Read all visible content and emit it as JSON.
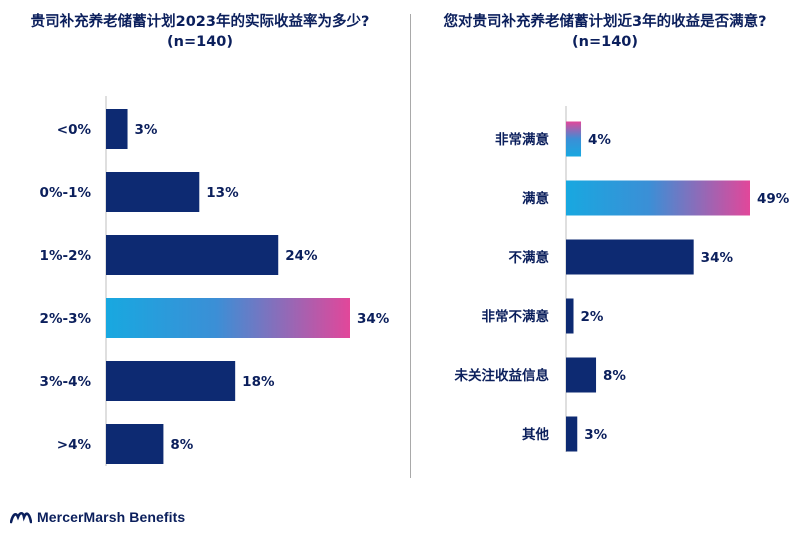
{
  "left_title_line1": "贵司补充养老储蓄计划2023年的实际收益率为多少?",
  "left_title_line2": "(n=140)",
  "right_title_line1": "您对贵司补充养老储蓄计划近3年的收益是否满意?",
  "right_title_line2": "(n=140)",
  "brand": "MercerMarsh Benefits",
  "colors": {
    "navy": "#0d2a72",
    "gradient_cyan": "#18a8e0",
    "gradient_pink": "#e2479a",
    "text": "#0b1f5c"
  },
  "chart_data": [
    {
      "type": "bar",
      "orientation": "horizontal",
      "title": "贵司补充养老储蓄计划2023年的实际收益率为多少?(n=140)",
      "categories": [
        "<0%",
        "0%-1%",
        "1%-2%",
        "2%-3%",
        "3%-4%",
        ">4%"
      ],
      "values": [
        3,
        13,
        24,
        34,
        18,
        8
      ],
      "value_labels": [
        "3%",
        "13%",
        "24%",
        "34%",
        "18%",
        "8%"
      ],
      "highlight_index": 3,
      "unit": "%"
    },
    {
      "type": "bar",
      "orientation": "horizontal",
      "title": "您对贵司补充养老储蓄计划近3年的收益是否满意?(n=140)",
      "categories": [
        "非常满意",
        "满意",
        "不满意",
        "非常不满意",
        "未关注收益信息",
        "其他"
      ],
      "values": [
        4,
        49,
        34,
        2,
        8,
        3
      ],
      "value_labels": [
        "4%",
        "49%",
        "34%",
        "2%",
        "8%",
        "3%"
      ],
      "highlight_index": [
        0,
        1
      ],
      "unit": "%"
    }
  ]
}
